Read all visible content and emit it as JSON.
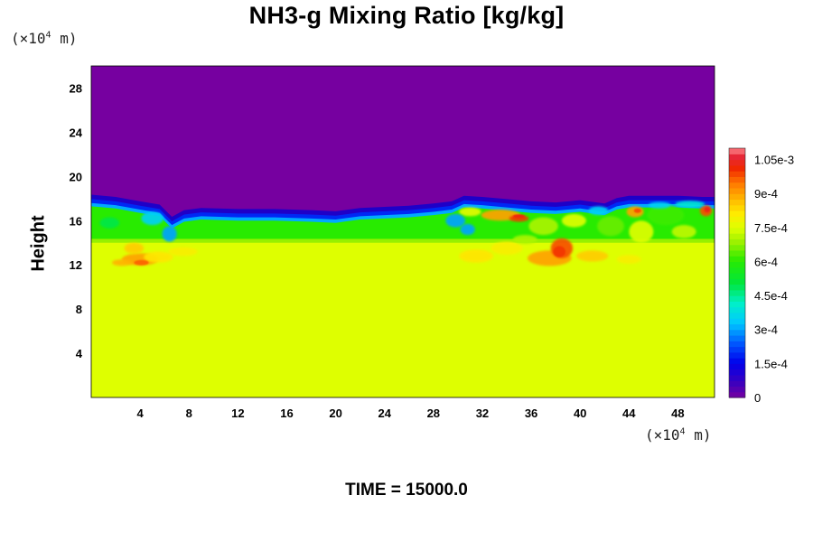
{
  "chart_data": {
    "type": "heatmap",
    "title": "NH3-g Mixing Ratio [kg/kg]",
    "ylabel": "Height",
    "xlabel": "",
    "x_unit": {
      "prefix": "(×10",
      "exp": "4",
      "suffix": " m)"
    },
    "y_unit": {
      "prefix": "(×10",
      "exp": "4",
      "suffix": " m)"
    },
    "x_range": [
      0,
      51
    ],
    "y_range": [
      0,
      30
    ],
    "x_ticks": [
      "4",
      "8",
      "12",
      "16",
      "20",
      "24",
      "28",
      "32",
      "36",
      "40",
      "44",
      "48"
    ],
    "y_ticks": [
      "4",
      "8",
      "12",
      "16",
      "20",
      "24",
      "28"
    ],
    "x_tick_values": [
      4,
      8,
      12,
      16,
      20,
      24,
      28,
      32,
      36,
      40,
      44,
      48
    ],
    "y_tick_values": [
      4,
      8,
      12,
      16,
      20,
      24,
      28
    ],
    "colorbar": {
      "range": [
        0,
        0.0011
      ],
      "tick_labels": [
        "0",
        "1.5e-4",
        "3e-4",
        "4.5e-4",
        "6e-4",
        "7.5e-4",
        "9e-4",
        "1.05e-3"
      ],
      "tick_values": [
        0,
        0.00015,
        0.0003,
        0.00045,
        0.0006,
        0.00075,
        0.0009,
        0.00105
      ]
    },
    "field_summary": {
      "lower_layer_value": 0.00077,
      "lower_layer_top": 14.0,
      "middle_layer_value": 0.00055,
      "middle_layer_top": 17.0,
      "upper_layer_value": 0
    }
  },
  "footer": {
    "time_label": "TIME = 15000.0"
  }
}
